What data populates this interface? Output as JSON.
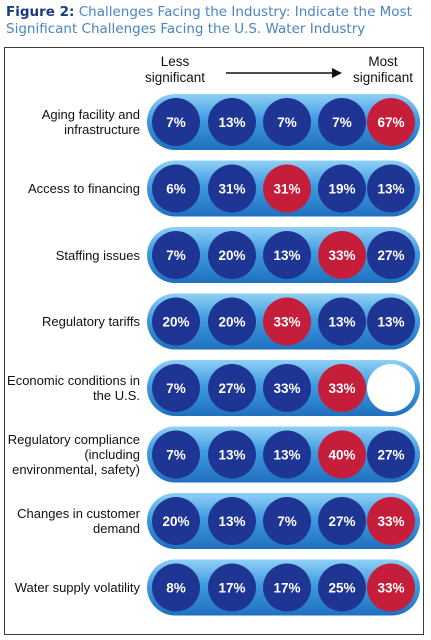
{
  "title": {
    "prefix": "Figure 2:",
    "text": "Challenges Facing the Industry: Indicate the Most Significant Challenges Facing the U.S. Water Industry"
  },
  "scale": {
    "less": "Less significant",
    "most": "Most significant"
  },
  "colors": {
    "bar": "#2f86d2",
    "circle_default": "#1f3593",
    "circle_highlight": "#c41e3a",
    "circle_empty": "#ffffff",
    "title": "#4a84c4"
  },
  "chart_data": {
    "type": "table",
    "columns": 5,
    "rows": [
      {
        "label": "Aging facility and infrastructure",
        "values": [
          "7%",
          "13%",
          "7%",
          "7%",
          "67%"
        ],
        "highlight": 4
      },
      {
        "label": "Access to financing",
        "values": [
          "6%",
          "31%",
          "31%",
          "19%",
          "13%"
        ],
        "highlight": 2
      },
      {
        "label": "Staffing issues",
        "values": [
          "7%",
          "20%",
          "13%",
          "33%",
          "27%"
        ],
        "highlight": 3
      },
      {
        "label": "Regulatory tariffs",
        "values": [
          "20%",
          "20%",
          "33%",
          "13%",
          "13%"
        ],
        "highlight": 2
      },
      {
        "label": "Economic conditions in the U.S.",
        "values": [
          "7%",
          "27%",
          "33%",
          "33%",
          ""
        ],
        "highlight": 3
      },
      {
        "label": "Regulatory compliance (including environmental, safety)",
        "values": [
          "7%",
          "13%",
          "13%",
          "40%",
          "27%"
        ],
        "highlight": 3
      },
      {
        "label": "Changes in customer demand",
        "values": [
          "20%",
          "13%",
          "7%",
          "27%",
          "33%"
        ],
        "highlight": 4
      },
      {
        "label": "Water supply volatility",
        "values": [
          "8%",
          "17%",
          "17%",
          "25%",
          "33%"
        ],
        "highlight": 4
      }
    ]
  }
}
